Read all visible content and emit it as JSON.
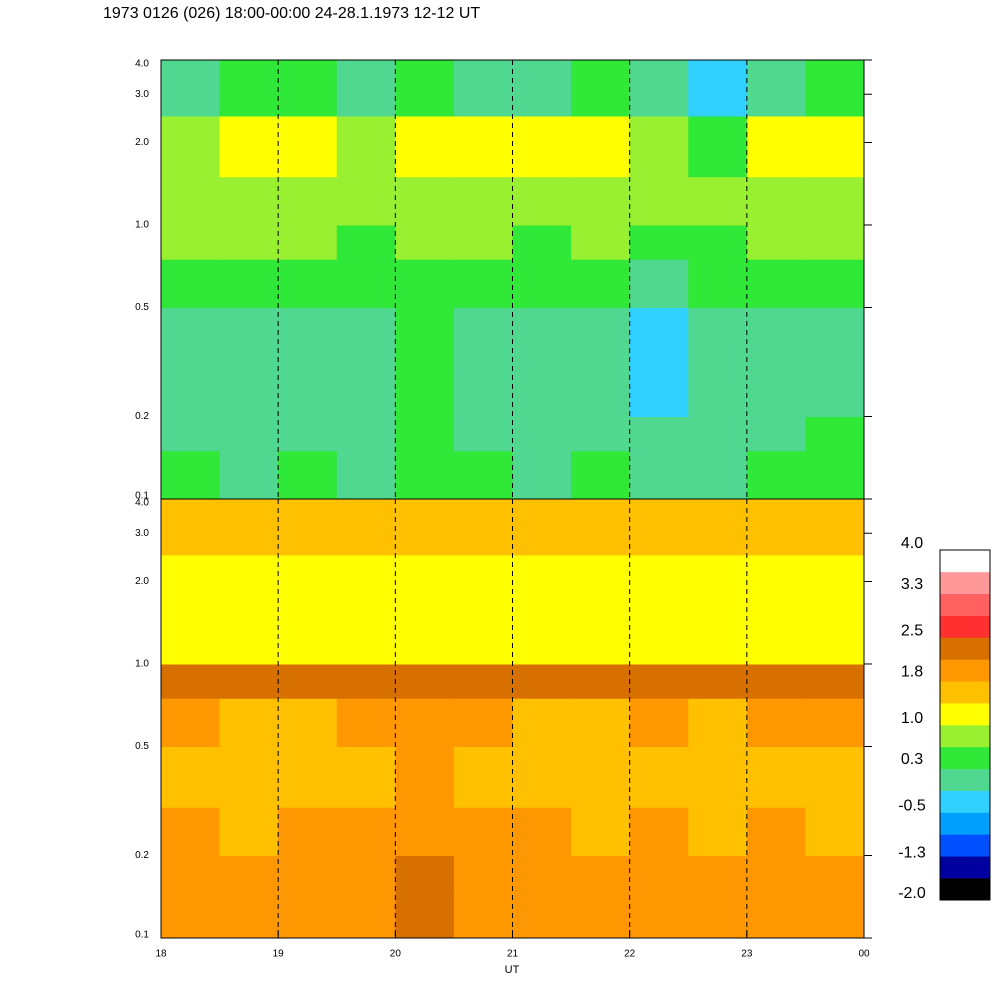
{
  "chart_data": [
    {
      "type": "heatmap",
      "title": "1973 0126 (026) 18:00-00:00 24-28.1.1973  12-12 UT",
      "x_edges": [
        18,
        18.5,
        19,
        19.5,
        20,
        20.5,
        21,
        21.5,
        22,
        22.5,
        23,
        23.5,
        24
      ],
      "y_edges": [
        0.1,
        0.15,
        0.2,
        0.3,
        0.5,
        0.75,
        1.0,
        1.5,
        2.5,
        4.0
      ],
      "values": [
        [
          0.3,
          0.2,
          0.3,
          0.2,
          0.6,
          0.3,
          0.2,
          0.3,
          0.1,
          0.2,
          0.3,
          0.4
        ],
        [
          0.2,
          0.1,
          0.2,
          0.1,
          0.6,
          0.2,
          0.1,
          0.2,
          0.0,
          0.1,
          0.2,
          0.3
        ],
        [
          0.1,
          0.0,
          0.1,
          0.0,
          0.5,
          0.1,
          0.0,
          0.1,
          -0.2,
          0.0,
          0.1,
          0.2
        ],
        [
          0.0,
          -0.1,
          0.0,
          -0.1,
          0.4,
          0.0,
          -0.1,
          0.0,
          -0.3,
          -0.1,
          0.0,
          0.1
        ],
        [
          0.4,
          0.3,
          0.4,
          0.3,
          0.6,
          0.4,
          0.3,
          0.4,
          0.1,
          0.3,
          0.4,
          0.4
        ],
        [
          0.8,
          0.7,
          0.7,
          0.6,
          0.8,
          0.7,
          0.6,
          0.7,
          0.6,
          0.6,
          0.7,
          0.7
        ],
        [
          0.9,
          0.9,
          0.8,
          0.8,
          0.9,
          0.8,
          0.9,
          0.8,
          0.8,
          0.7,
          0.8,
          0.8
        ],
        [
          0.9,
          1.1,
          1.2,
          0.9,
          1.1,
          1.0,
          1.1,
          1.1,
          0.8,
          0.5,
          1.0,
          1.1
        ],
        [
          0.2,
          0.3,
          0.3,
          0.2,
          0.3,
          0.2,
          0.2,
          0.3,
          0.1,
          -0.3,
          0.2,
          0.3
        ]
      ],
      "xlim": [
        18,
        24
      ],
      "xticks": [
        18,
        19,
        20,
        21,
        22,
        23,
        24
      ],
      "ylim": [
        0.1,
        4.0
      ],
      "log_y": true,
      "yticks": [
        0.1,
        0.2,
        0.5,
        {
          "value": 1,
          "label": "1.0"
        },
        {
          "value": 2,
          "label": "2.0"
        },
        {
          "value": 3,
          "label": "3.0"
        },
        {
          "value": 4,
          "label": "4.0"
        }
      ]
    },
    {
      "type": "heatmap",
      "x_label": "UT",
      "x_edges": [
        18,
        18.5,
        19,
        19.5,
        20,
        20.5,
        21,
        21.5,
        22,
        22.5,
        23,
        23.5,
        24
      ],
      "y_edges": [
        0.1,
        0.15,
        0.2,
        0.3,
        0.5,
        0.75,
        1.0,
        1.5,
        2.5,
        4.0
      ],
      "values": [
        [
          1.9,
          1.8,
          1.9,
          2.0,
          2.2,
          2.0,
          1.9,
          1.8,
          1.9,
          1.8,
          1.9,
          1.8
        ],
        [
          1.9,
          1.8,
          1.9,
          2.0,
          2.2,
          2.0,
          1.9,
          1.8,
          1.9,
          1.8,
          1.9,
          1.8
        ],
        [
          1.8,
          1.7,
          1.8,
          1.9,
          2.1,
          1.9,
          1.8,
          1.7,
          1.8,
          1.7,
          1.8,
          1.7
        ],
        [
          1.6,
          1.5,
          1.5,
          1.6,
          2.0,
          1.7,
          1.5,
          1.5,
          1.6,
          1.5,
          1.6,
          1.5
        ],
        [
          1.8,
          1.7,
          1.7,
          1.8,
          1.9,
          1.8,
          1.7,
          1.7,
          1.8,
          1.7,
          1.8,
          1.8
        ],
        [
          2.2,
          2.2,
          2.2,
          2.2,
          2.3,
          2.2,
          2.2,
          2.2,
          2.2,
          2.2,
          2.2,
          2.2
        ],
        [
          1.2,
          1.1,
          1.2,
          1.1,
          1.2,
          1.1,
          1.1,
          1.2,
          1.1,
          1.1,
          1.2,
          1.1
        ],
        [
          1.3,
          1.2,
          1.3,
          1.2,
          1.3,
          1.2,
          1.2,
          1.3,
          1.2,
          1.2,
          1.3,
          1.2
        ],
        [
          1.6,
          1.5,
          1.6,
          1.5,
          1.6,
          1.5,
          1.5,
          1.6,
          1.5,
          1.5,
          1.6,
          1.6
        ]
      ],
      "xlim": [
        18,
        24
      ],
      "xticks": [
        18,
        19,
        20,
        21,
        22,
        23,
        {
          "value": 24,
          "label": "00"
        }
      ],
      "ylim": [
        0.1,
        4.0
      ],
      "log_y": true,
      "yticks": [
        0.1,
        0.2,
        0.5,
        {
          "value": 1,
          "label": "1.0"
        },
        {
          "value": 2,
          "label": "2.0"
        },
        {
          "value": 3,
          "label": "3.0"
        },
        {
          "value": 4,
          "label": "4.0"
        }
      ]
    }
  ],
  "colorbar": {
    "lim": [
      -2,
      4
    ],
    "colors": [
      "#000000",
      "#0000a0",
      "#0050ff",
      "#00a0ff",
      "#30d0ff",
      "#50d890",
      "#30e838",
      "#98f030",
      "#ffff00",
      "#ffc000",
      "#ff9800",
      "#d87000",
      "#ff3030",
      "#ff6060",
      "#ff9898",
      "#ffffff"
    ],
    "ticks": [
      {
        "value": 4,
        "label": "4.0"
      },
      3.3,
      2.5,
      1.8,
      {
        "value": 1,
        "label": "1.0"
      },
      0.3,
      -0.5,
      -1.3,
      {
        "value": -2,
        "label": "-2.0"
      }
    ]
  }
}
